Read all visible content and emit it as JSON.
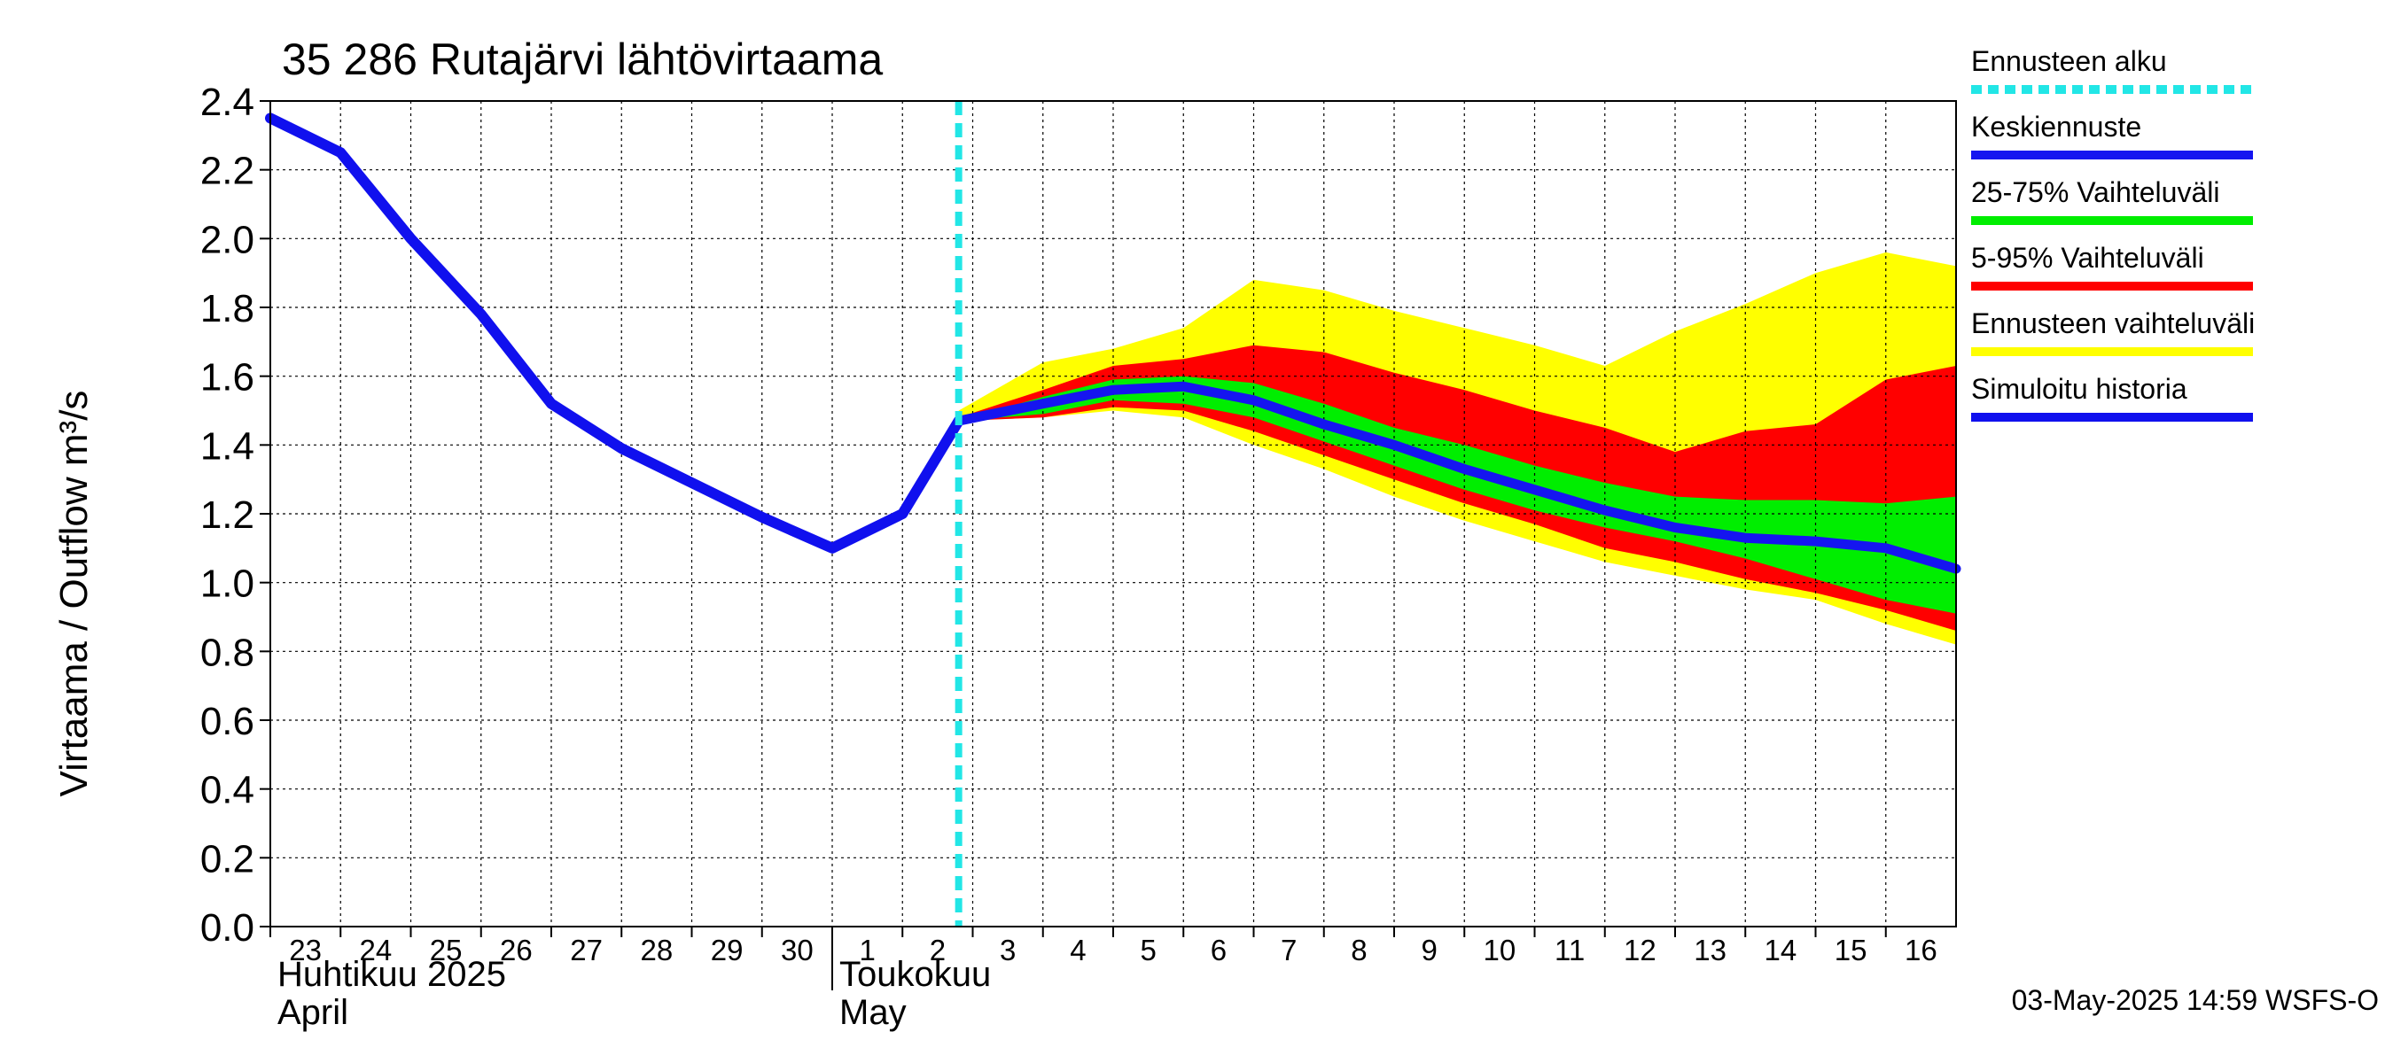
{
  "chart_data": {
    "type": "area",
    "title": "35 286 Rutajärvi lähtövirtaama",
    "ylabel": "Virtaama / Outflow    m³/s",
    "ylim": [
      0,
      2.4
    ],
    "yticks": [
      "0.0",
      "0.2",
      "0.4",
      "0.6",
      "0.8",
      "1.0",
      "1.2",
      "1.4",
      "1.6",
      "1.8",
      "2.0",
      "2.2",
      "2.4"
    ],
    "xlim": [
      -10,
      14
    ],
    "xticks": [
      {
        "label": "23",
        "day": -10
      },
      {
        "label": "24",
        "day": -9
      },
      {
        "label": "25",
        "day": -8
      },
      {
        "label": "26",
        "day": -7
      },
      {
        "label": "27",
        "day": -6
      },
      {
        "label": "28",
        "day": -5
      },
      {
        "label": "29",
        "day": -4
      },
      {
        "label": "30",
        "day": -3
      },
      {
        "label": "1",
        "day": -2
      },
      {
        "label": "2",
        "day": -1
      },
      {
        "label": "3",
        "day": 0
      },
      {
        "label": "4",
        "day": 1
      },
      {
        "label": "5",
        "day": 2
      },
      {
        "label": "6",
        "day": 3
      },
      {
        "label": "7",
        "day": 4
      },
      {
        "label": "8",
        "day": 5
      },
      {
        "label": "9",
        "day": 6
      },
      {
        "label": "10",
        "day": 7
      },
      {
        "label": "11",
        "day": 8
      },
      {
        "label": "12",
        "day": 9
      },
      {
        "label": "13",
        "day": 10
      },
      {
        "label": "14",
        "day": 11
      },
      {
        "label": "15",
        "day": 12
      },
      {
        "label": "16",
        "day": 13
      }
    ],
    "month_labels": [
      {
        "line1": "Huhtikuu  2025",
        "line2": "April",
        "day": -10
      },
      {
        "line1": "Toukokuu",
        "line2": "May",
        "day": -2
      }
    ],
    "month_separator_day": -2,
    "forecast_start_day": -0.2,
    "x_day_note": "0 = 3 May 2025 (day 3 of May)",
    "history": {
      "x": [
        -10,
        -9,
        -8,
        -7,
        -6,
        -5,
        -4,
        -3,
        -2,
        -1,
        -0.2
      ],
      "y": [
        2.35,
        2.25,
        2.0,
        1.78,
        1.52,
        1.39,
        1.29,
        1.19,
        1.1,
        1.2,
        1.47
      ]
    },
    "forecast_x": [
      -0.2,
      1,
      2,
      3,
      4,
      5,
      6,
      7,
      8,
      9,
      10,
      11,
      12,
      13,
      14
    ],
    "ennuste_upper": [
      1.5,
      1.64,
      1.68,
      1.74,
      1.88,
      1.85,
      1.79,
      1.74,
      1.69,
      1.63,
      1.73,
      1.81,
      1.9,
      1.96,
      1.92
    ],
    "ennuste_lower": [
      1.47,
      1.48,
      1.5,
      1.48,
      1.4,
      1.33,
      1.25,
      1.18,
      1.12,
      1.06,
      1.02,
      0.98,
      0.95,
      0.88,
      0.82
    ],
    "p5_95_upper": [
      1.48,
      1.56,
      1.63,
      1.65,
      1.69,
      1.67,
      1.61,
      1.56,
      1.5,
      1.45,
      1.38,
      1.44,
      1.46,
      1.59,
      1.63
    ],
    "p5_95_lower": [
      1.47,
      1.48,
      1.51,
      1.5,
      1.44,
      1.37,
      1.3,
      1.23,
      1.17,
      1.1,
      1.06,
      1.01,
      0.97,
      0.92,
      0.86
    ],
    "p25_75_upper": [
      1.47,
      1.54,
      1.59,
      1.6,
      1.58,
      1.52,
      1.45,
      1.4,
      1.34,
      1.29,
      1.25,
      1.24,
      1.24,
      1.23,
      1.25
    ],
    "p25_75_lower": [
      1.47,
      1.49,
      1.53,
      1.52,
      1.48,
      1.41,
      1.34,
      1.27,
      1.21,
      1.16,
      1.12,
      1.07,
      1.01,
      0.95,
      0.91
    ],
    "mean": [
      1.47,
      1.52,
      1.56,
      1.57,
      1.53,
      1.46,
      1.4,
      1.33,
      1.27,
      1.21,
      1.16,
      1.13,
      1.12,
      1.1,
      1.04
    ],
    "legend": [
      {
        "label": "Ennusteen alku",
        "color": "#22e6e6",
        "style": "dashed"
      },
      {
        "label": "Keskiennuste",
        "color": "#1515f0",
        "style": "line"
      },
      {
        "label": "25-75% Vaihteluväli",
        "color": "#00ee00",
        "style": "line"
      },
      {
        "label": "5-95% Vaihteluväli",
        "color": "#ff0000",
        "style": "line"
      },
      {
        "label": "Ennusteen vaihteluväli",
        "color": "#ffff00",
        "style": "line"
      },
      {
        "label": "Simuloitu historia",
        "color": "#1010ee",
        "style": "line"
      }
    ],
    "colors": {
      "band_ennuste": "#ffff00",
      "band_5_95": "#ff0000",
      "band_25_75": "#00ee00",
      "mean": "#1515f0",
      "history": "#1010ee",
      "forecast_start": "#22e6e6",
      "grid": "#000000"
    },
    "legend_position": "right",
    "grid": true
  },
  "footer": {
    "timestamp": "03-May-2025 14:59 WSFS-O"
  }
}
